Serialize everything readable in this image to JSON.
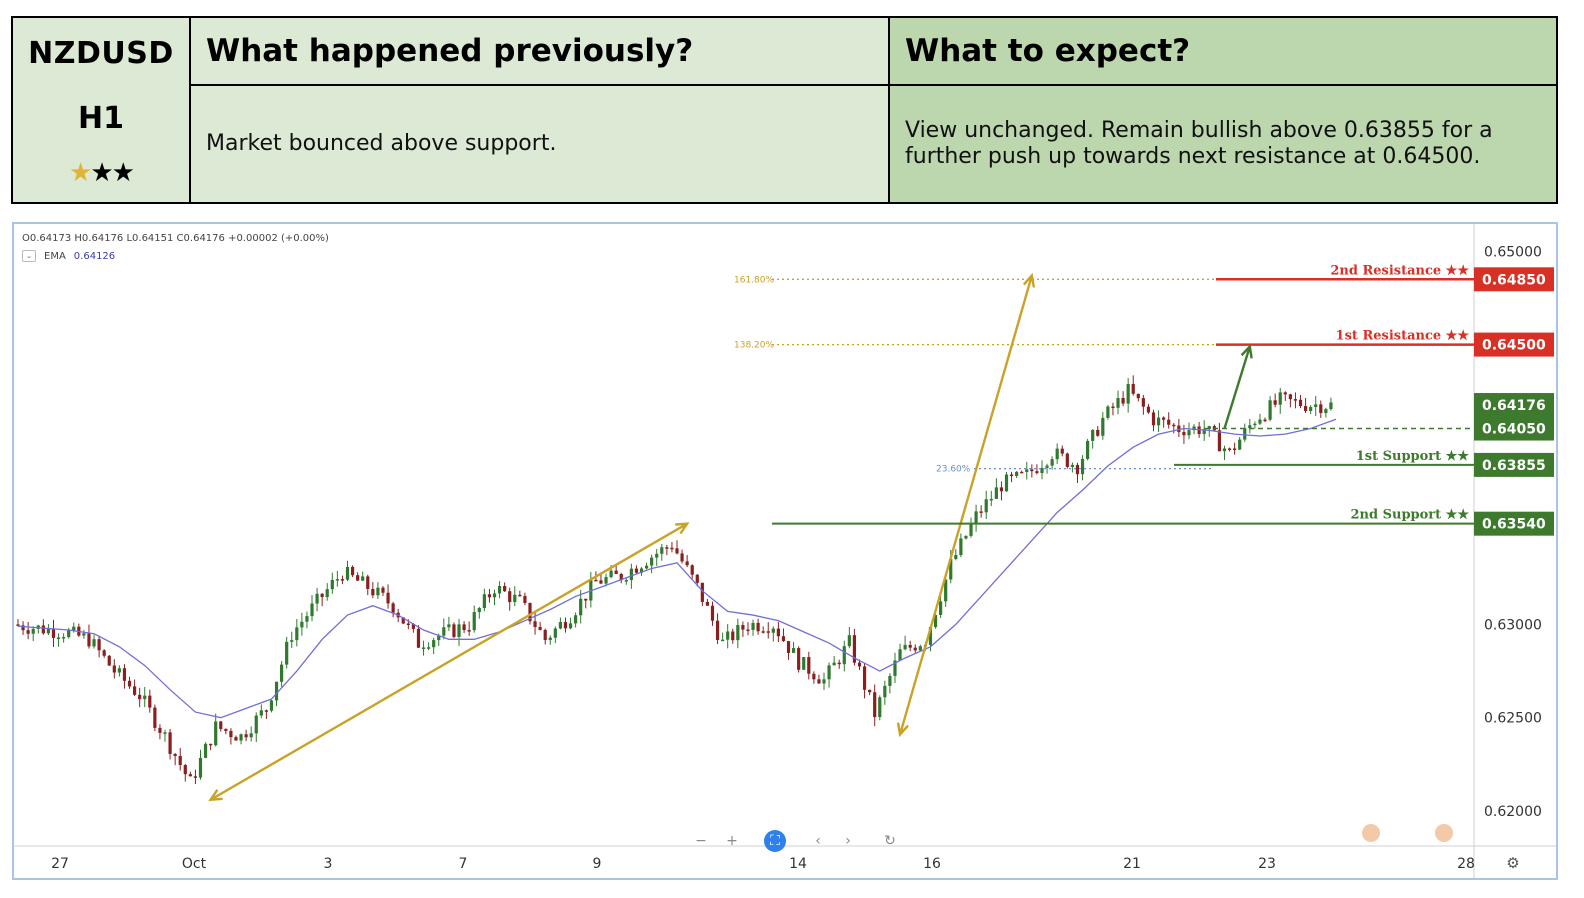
{
  "header": {
    "pair": "NZDUSD",
    "timeframe": "H1",
    "stars": {
      "rating": 1,
      "out_of": 3,
      "glyph": "★"
    },
    "col_prev_title": "What happened previously?",
    "col_expect_title": "What to expect?",
    "prev_text": "Market bounced above support.",
    "expect_text": "View unchanged. Remain bullish above 0.63855 for a further push up towards next resistance at 0.64500."
  },
  "legend": {
    "ohlc": "O0.64173  H0.64176  L0.64151  C0.64176  +0.00002 (+0.00%)",
    "ema_label": "EMA",
    "ema_value": "0.64126",
    "toggle_icon": "chevron-down-icon"
  },
  "colors": {
    "resistance": "#d93025",
    "support": "#3d7a2e",
    "fib": "#c9a227",
    "fib_blue": "#6b8fd6",
    "ema": "#6f6fd8",
    "candle_up": "#2f7a2f",
    "candle_down": "#8a1f1f",
    "arrow_gold": "#c9a227",
    "arrow_green": "#3d7a2e"
  },
  "toolbar": [
    {
      "icon": "zoom-out-icon",
      "glyph": "−"
    },
    {
      "icon": "zoom-in-icon",
      "glyph": "+"
    },
    {
      "icon": "reset-view-icon",
      "glyph": "⛶"
    },
    {
      "icon": "scroll-left-icon",
      "glyph": "‹"
    },
    {
      "icon": "scroll-right-icon",
      "glyph": "›"
    },
    {
      "icon": "refresh-icon",
      "glyph": "↻"
    }
  ],
  "settings_icon": "⚙",
  "chart_data": {
    "type": "line",
    "symbol": "NZDUSD",
    "timeframe": "H1",
    "ylim": [
      0.6193,
      0.6505
    ],
    "x_ticks": [
      "27",
      "Oct",
      "3",
      "7",
      "9",
      "14",
      "16",
      "21",
      "23",
      "28"
    ],
    "y_ticks": [
      "0.65000",
      "0.63000",
      "0.62500",
      "0.62000"
    ],
    "levels": [
      {
        "name": "2nd Resistance ★★",
        "price": 0.6485,
        "label": "0.64850",
        "kind": "resistance"
      },
      {
        "name": "1st Resistance ★★",
        "price": 0.645,
        "label": "0.64500",
        "kind": "resistance"
      },
      {
        "name": "",
        "price": 0.64176,
        "label": "0.64176",
        "kind": "current"
      },
      {
        "name": "",
        "price": 0.6405,
        "label": "0.64050",
        "kind": "pivot"
      },
      {
        "name": "1st Support ★★",
        "price": 0.63855,
        "label": "0.63855",
        "kind": "support"
      },
      {
        "name": "2nd Support ★★",
        "price": 0.6354,
        "label": "0.63540",
        "kind": "support"
      }
    ],
    "fib_labels": [
      {
        "text": "161.80%",
        "price": 0.6485
      },
      {
        "text": "138.20%",
        "price": 0.645
      },
      {
        "text": "23.60%",
        "price": 0.63835
      }
    ],
    "series": [
      {
        "name": "EMA",
        "x": [
          0,
          5,
          10,
          15,
          20,
          25,
          30,
          35,
          40,
          45,
          50,
          55,
          60,
          65,
          70,
          75,
          80,
          85,
          90,
          95,
          100,
          105,
          110,
          115,
          120,
          125,
          130,
          135,
          140,
          145,
          150,
          155,
          160,
          165,
          170,
          175,
          180,
          185,
          190,
          195,
          200,
          205,
          210,
          215,
          220,
          225,
          230,
          235,
          240,
          245,
          250,
          255,
          260
        ],
        "values": [
          0.6299,
          0.6298,
          0.6297,
          0.6295,
          0.6288,
          0.6278,
          0.6265,
          0.6253,
          0.625,
          0.6255,
          0.626,
          0.6275,
          0.6292,
          0.6305,
          0.631,
          0.6305,
          0.6297,
          0.6292,
          0.6292,
          0.6296,
          0.6302,
          0.6308,
          0.6315,
          0.632,
          0.6325,
          0.633,
          0.6333,
          0.6318,
          0.6307,
          0.6305,
          0.6302,
          0.6296,
          0.629,
          0.6282,
          0.6275,
          0.6282,
          0.6288,
          0.63,
          0.6315,
          0.633,
          0.6345,
          0.636,
          0.6372,
          0.6385,
          0.6395,
          0.6402,
          0.6405,
          0.6404,
          0.6402,
          0.6401,
          0.6402,
          0.6405,
          0.641
        ]
      },
      {
        "name": "Close",
        "x": [
          0,
          5,
          10,
          15,
          20,
          25,
          30,
          35,
          40,
          45,
          50,
          55,
          60,
          65,
          70,
          75,
          80,
          85,
          90,
          95,
          100,
          105,
          110,
          115,
          120,
          125,
          130,
          135,
          140,
          145,
          150,
          155,
          160,
          165,
          170,
          175,
          180,
          185,
          190,
          195,
          200,
          205,
          210,
          215,
          220,
          225,
          230,
          235,
          240,
          245,
          250,
          255,
          260
        ],
        "values": [
          0.63,
          0.6298,
          0.6296,
          0.6292,
          0.6275,
          0.6262,
          0.624,
          0.6215,
          0.6245,
          0.624,
          0.6255,
          0.6295,
          0.6312,
          0.6328,
          0.632,
          0.631,
          0.629,
          0.6295,
          0.63,
          0.632,
          0.6312,
          0.6292,
          0.6305,
          0.6323,
          0.6326,
          0.6335,
          0.6343,
          0.632,
          0.629,
          0.63,
          0.63,
          0.628,
          0.627,
          0.629,
          0.6252,
          0.6285,
          0.6292,
          0.6332,
          0.6358,
          0.6375,
          0.638,
          0.6392,
          0.6385,
          0.641,
          0.6425,
          0.641,
          0.6405,
          0.6405,
          0.6392,
          0.641,
          0.642,
          0.6418,
          0.64176
        ]
      }
    ],
    "arrows": [
      {
        "from_x": 38,
        "from_price": 0.6206,
        "to_x": 132,
        "to_price": 0.6354
      },
      {
        "from_x": 174,
        "from_price": 0.6241,
        "to_x": 200,
        "to_price": 0.6487
      },
      {
        "from_x": 238,
        "from_price": 0.6405,
        "to_x": 243,
        "to_price": 0.6449
      }
    ]
  }
}
